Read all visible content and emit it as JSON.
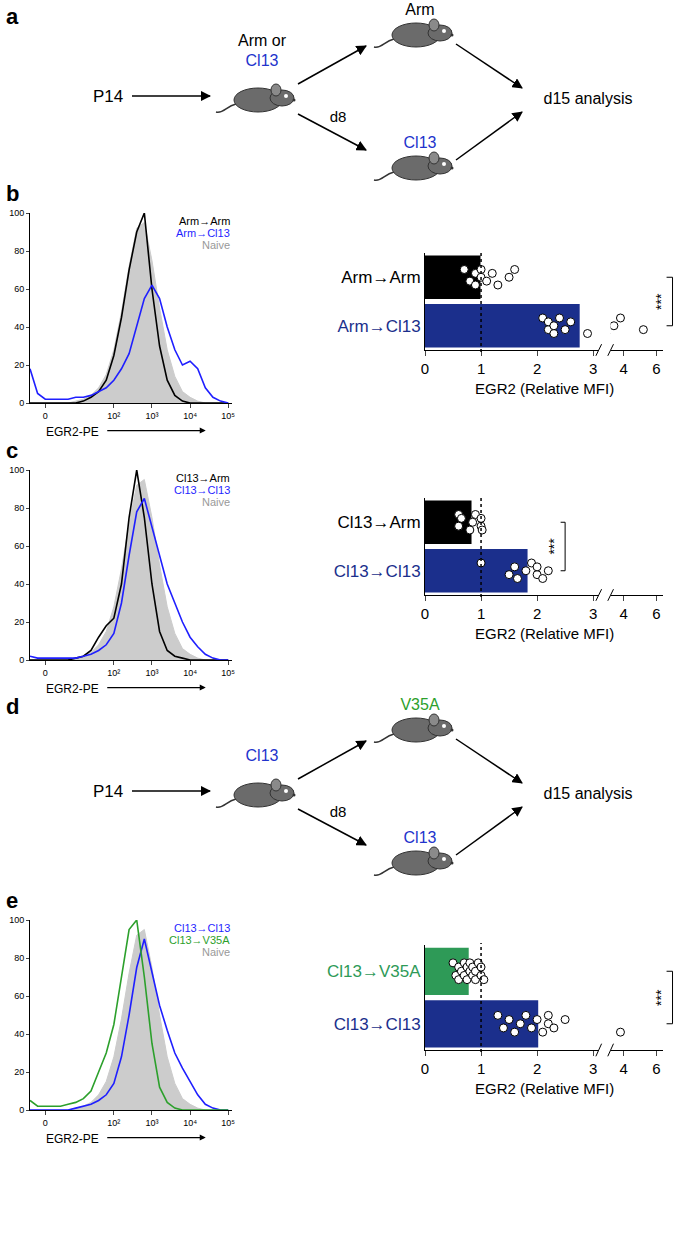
{
  "chart_data": [
    {
      "panel": "b",
      "type": "line",
      "x": [
        -0.2,
        0,
        0.2,
        0.4,
        0.6,
        0.8,
        1,
        1.2,
        1.4,
        1.6,
        1.8,
        2,
        2.2,
        2.4,
        2.6,
        2.8,
        3,
        3.2,
        3.4,
        3.6,
        3.8,
        4,
        4.2,
        4.4,
        4.6,
        4.8,
        5
      ],
      "series": [
        {
          "name": "Arm→Arm",
          "color": "#000000",
          "type": "line",
          "values": [
            0,
            0,
            0,
            0,
            0,
            0,
            0,
            1,
            3,
            6,
            12,
            25,
            45,
            70,
            90,
            100,
            60,
            30,
            12,
            4,
            1,
            0,
            0,
            0,
            0,
            0,
            0
          ]
        },
        {
          "name": "Arm→Cl13",
          "color": "#1f1fff",
          "type": "line",
          "values": [
            18,
            5,
            2,
            2,
            2,
            2,
            3,
            3,
            4,
            6,
            8,
            12,
            18,
            26,
            40,
            55,
            62,
            55,
            40,
            28,
            20,
            22,
            18,
            8,
            3,
            1,
            0
          ]
        },
        {
          "name": "Naive",
          "color": "#cccccc",
          "type": "area",
          "values": [
            0,
            0,
            0,
            0,
            0,
            0,
            1,
            2,
            4,
            8,
            15,
            28,
            48,
            72,
            92,
            95,
            75,
            50,
            28,
            14,
            6,
            3,
            1,
            0,
            0,
            0,
            0
          ]
        }
      ],
      "xlabel": "EGR2-PE",
      "xlim": [
        -0.2,
        5.1
      ],
      "xticks": [
        {
          "value": 0.2,
          "label": "0"
        },
        {
          "value": 2,
          "label": "10²"
        },
        {
          "value": 3,
          "label": "10³"
        },
        {
          "value": 4,
          "label": "10⁴"
        },
        {
          "value": 5,
          "label": "10⁵"
        }
      ],
      "ylim": [
        0,
        100
      ],
      "yticks": [
        0,
        20,
        40,
        60,
        80,
        100
      ],
      "legend": "top right"
    },
    {
      "type": "bar",
      "orientation": "horizontal",
      "categories": [
        "Arm→Arm",
        "Arm→Cl13"
      ],
      "values": [
        0.99,
        2.76
      ],
      "colors": [
        "#000000",
        "#1b2f8c"
      ],
      "points": [
        [
          0.7,
          0.8,
          0.9,
          0.9,
          1.0,
          1.0,
          1.1,
          1.2,
          1.3,
          1.5,
          1.6
        ],
        [
          2.1,
          2.2,
          2.2,
          2.3,
          2.3,
          2.4,
          2.5,
          2.6,
          2.9,
          3.4,
          3.8,
          5.2
        ]
      ],
      "xlabel": "EGR2 (Relative MFI)",
      "xlim": [
        0,
        3.1
      ],
      "xticks": [
        0,
        1,
        2,
        3
      ],
      "x2lim": [
        3.2,
        6.4
      ],
      "x2ticks": [
        4,
        6
      ],
      "reference_x": 1,
      "significance": "***"
    },
    {
      "panel": "c",
      "type": "line",
      "x": [
        -0.2,
        0,
        0.2,
        0.4,
        0.6,
        0.8,
        1,
        1.2,
        1.4,
        1.6,
        1.8,
        2,
        2.2,
        2.4,
        2.6,
        2.8,
        3,
        3.2,
        3.4,
        3.6,
        3.8,
        4,
        4.2,
        4.4,
        4.6,
        4.8,
        5
      ],
      "series": [
        {
          "name": "Cl13→Arm",
          "color": "#000000",
          "type": "line",
          "values": [
            0,
            0,
            0,
            0,
            0,
            0,
            1,
            2,
            5,
            12,
            18,
            22,
            40,
            75,
            100,
            75,
            40,
            15,
            5,
            2,
            1,
            0,
            0,
            0,
            0,
            0,
            0
          ]
        },
        {
          "name": "Cl13→Cl13",
          "color": "#1f1fff",
          "type": "line",
          "values": [
            2,
            1,
            1,
            1,
            1,
            1,
            1,
            2,
            3,
            5,
            8,
            14,
            30,
            55,
            78,
            85,
            70,
            55,
            40,
            30,
            20,
            12,
            7,
            3,
            1,
            0,
            0
          ]
        },
        {
          "name": "Naive",
          "color": "#cccccc",
          "type": "area",
          "values": [
            0,
            0,
            0,
            0,
            0,
            0,
            1,
            2,
            4,
            8,
            15,
            28,
            48,
            72,
            92,
            95,
            75,
            50,
            28,
            14,
            6,
            3,
            1,
            0,
            0,
            0,
            0
          ]
        }
      ],
      "xlabel": "EGR2-PE",
      "xlim": [
        -0.2,
        5.1
      ],
      "xticks": [
        {
          "value": 0.2,
          "label": "0"
        },
        {
          "value": 2,
          "label": "10²"
        },
        {
          "value": 3,
          "label": "10³"
        },
        {
          "value": 4,
          "label": "10⁴"
        },
        {
          "value": 5,
          "label": "10⁵"
        }
      ],
      "ylim": [
        0,
        100
      ],
      "yticks": [
        0,
        20,
        40,
        60,
        80,
        100
      ],
      "legend": "top right"
    },
    {
      "type": "bar",
      "orientation": "horizontal",
      "categories": [
        "Cl13→Arm",
        "Cl13→Cl13"
      ],
      "values": [
        0.83,
        1.83
      ],
      "colors": [
        "#000000",
        "#1b2f8c"
      ],
      "points": [
        [
          0.6,
          0.6,
          0.65,
          0.8,
          0.85,
          0.9,
          1.0,
          1.0,
          1.02
        ],
        [
          1.0,
          1.5,
          1.6,
          1.65,
          1.8,
          1.9,
          2.0,
          2.0,
          2.1,
          2.2
        ]
      ],
      "xlabel": "EGR2 (Relative MFI)",
      "xlim": [
        0,
        3.1
      ],
      "xticks": [
        0,
        1,
        2,
        3
      ],
      "x2lim": [
        3.2,
        6.4
      ],
      "x2ticks": [
        4,
        6
      ],
      "reference_x": 1,
      "significance": "***"
    },
    {
      "panel": "e",
      "type": "line",
      "x": [
        -0.2,
        0,
        0.2,
        0.4,
        0.6,
        0.8,
        1,
        1.2,
        1.4,
        1.6,
        1.8,
        2,
        2.2,
        2.4,
        2.6,
        2.8,
        3,
        3.2,
        3.4,
        3.6,
        3.8,
        4,
        4.2,
        4.4,
        4.6,
        4.8,
        5
      ],
      "series": [
        {
          "name": "Cl13→Cl13",
          "color": "#1f1fff",
          "type": "line",
          "values": [
            0,
            0,
            0,
            0,
            0,
            0,
            1,
            2,
            3,
            5,
            8,
            14,
            28,
            50,
            75,
            90,
            72,
            55,
            42,
            30,
            22,
            15,
            8,
            3,
            1,
            0,
            0
          ]
        },
        {
          "name": "Cl13→V35A",
          "color": "#2ca02c",
          "type": "line",
          "values": [
            5,
            2,
            2,
            2,
            2,
            3,
            4,
            6,
            10,
            20,
            30,
            45,
            70,
            95,
            100,
            70,
            35,
            12,
            4,
            1,
            0,
            0,
            0,
            0,
            0,
            0,
            0
          ]
        },
        {
          "name": "Naive",
          "color": "#cccccc",
          "type": "area",
          "values": [
            0,
            0,
            0,
            0,
            0,
            0,
            1,
            2,
            4,
            8,
            15,
            28,
            48,
            72,
            92,
            95,
            75,
            50,
            28,
            14,
            6,
            3,
            1,
            0,
            0,
            0,
            0
          ]
        }
      ],
      "xlabel": "EGR2-PE",
      "xlim": [
        -0.2,
        5.1
      ],
      "xticks": [
        {
          "value": 0.2,
          "label": "0"
        },
        {
          "value": 2,
          "label": "10²"
        },
        {
          "value": 3,
          "label": "10³"
        },
        {
          "value": 4,
          "label": "10⁴"
        },
        {
          "value": 5,
          "label": "10⁵"
        }
      ],
      "ylim": [
        0,
        100
      ],
      "yticks": [
        0,
        20,
        40,
        60,
        80,
        100
      ],
      "legend": "top right"
    },
    {
      "type": "bar",
      "orientation": "horizontal",
      "categories": [
        "Cl13→V35A",
        "Cl13→Cl13"
      ],
      "values": [
        0.78,
        2.02
      ],
      "colors": [
        "#2e9a57",
        "#1b2f8c"
      ],
      "points": [
        [
          0.5,
          0.55,
          0.6,
          0.6,
          0.65,
          0.7,
          0.7,
          0.75,
          0.75,
          0.8,
          0.8,
          0.85,
          0.85,
          0.9,
          0.9,
          0.95,
          1.0,
          1.0,
          1.05
        ],
        [
          1.3,
          1.4,
          1.5,
          1.6,
          1.7,
          1.8,
          1.9,
          2.0,
          2.1,
          2.2,
          2.2,
          2.3,
          2.5,
          3.8
        ]
      ],
      "xlabel": "EGR2 (Relative MFI)",
      "xlim": [
        0,
        3.1
      ],
      "xticks": [
        0,
        1,
        2,
        3
      ],
      "x2lim": [
        3.2,
        6.4
      ],
      "x2ticks": [
        4,
        6
      ],
      "reference_x": 1,
      "significance": "***"
    }
  ],
  "diagrams": [
    {
      "panel": "a",
      "source": "P14",
      "first": [
        {
          "text": "Arm or",
          "color": "#000000"
        },
        {
          "text": "Cl13",
          "color": "#2233cc"
        }
      ],
      "day": "d8",
      "branches": [
        {
          "text": "Arm",
          "color": "#000000"
        },
        {
          "text": "Cl13",
          "color": "#2233cc"
        }
      ],
      "end": "d15 analysis"
    },
    {
      "panel": "d",
      "source": "P14",
      "first": [
        {
          "text": "Cl13",
          "color": "#2233cc"
        }
      ],
      "day": "d8",
      "branches": [
        {
          "text": "V35A",
          "color": "#2ca02c"
        },
        {
          "text": "Cl13",
          "color": "#2233cc"
        }
      ],
      "end": "d15 analysis"
    }
  ]
}
